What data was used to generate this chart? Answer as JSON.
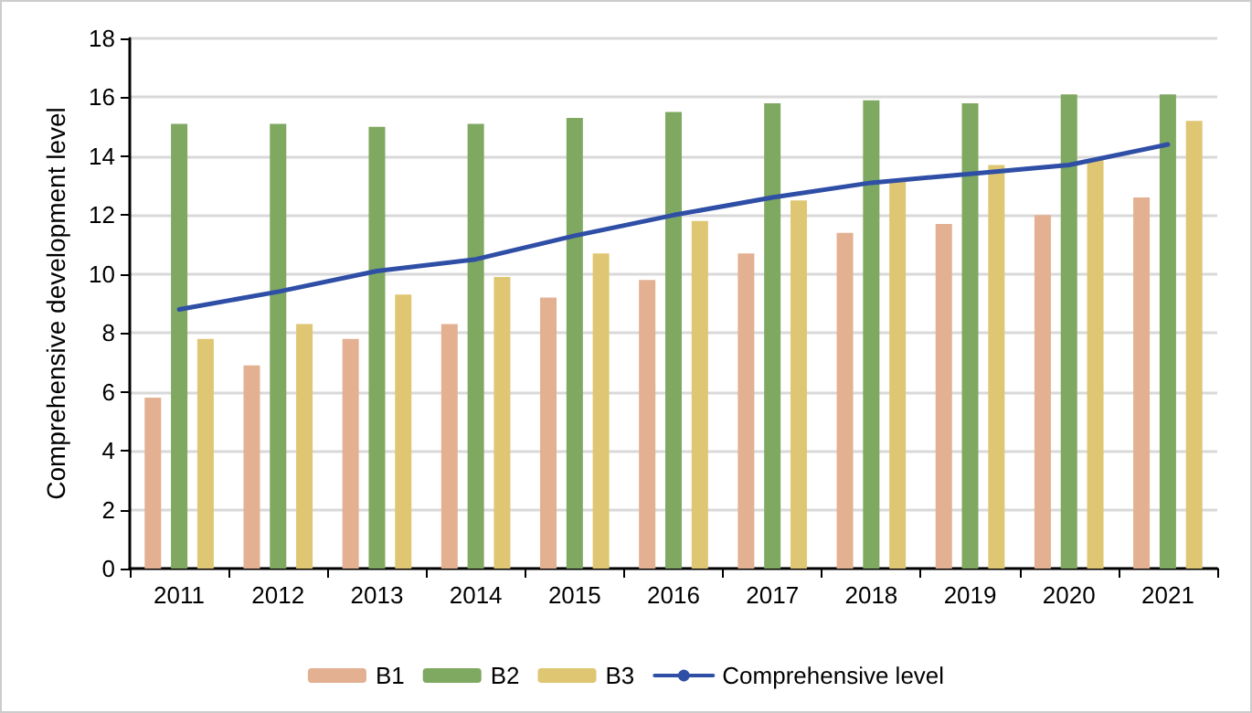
{
  "chart_data": {
    "type": "bar",
    "ylabel": "Comprehensive development level",
    "categories": [
      "2011",
      "2012",
      "2013",
      "2014",
      "2015",
      "2016",
      "2017",
      "2018",
      "2019",
      "2020",
      "2021"
    ],
    "series": [
      {
        "name": "B1",
        "color": "#e3b092",
        "values": [
          5.8,
          6.9,
          7.8,
          8.3,
          9.2,
          9.8,
          10.7,
          11.4,
          11.7,
          12.0,
          12.6
        ]
      },
      {
        "name": "B2",
        "color": "#7fa860",
        "values": [
          15.1,
          15.1,
          15.0,
          15.1,
          15.3,
          15.5,
          15.8,
          15.9,
          15.8,
          16.1,
          16.1
        ]
      },
      {
        "name": "B3",
        "color": "#dfc672",
        "values": [
          7.8,
          8.3,
          9.3,
          9.9,
          10.7,
          11.8,
          12.5,
          13.2,
          13.7,
          13.9,
          15.2
        ]
      },
      {
        "name": "Comprehensive level",
        "type": "line",
        "color": "#2f4fa6",
        "marker": "none",
        "values": [
          8.8,
          9.4,
          10.1,
          10.5,
          11.3,
          12.0,
          12.6,
          13.1,
          13.4,
          13.7,
          14.4
        ]
      }
    ],
    "ylim": [
      0,
      18
    ],
    "yticks": [
      0,
      2,
      4,
      6,
      8,
      10,
      12,
      14,
      16,
      18
    ],
    "grid": "y",
    "legend": "bottom"
  }
}
